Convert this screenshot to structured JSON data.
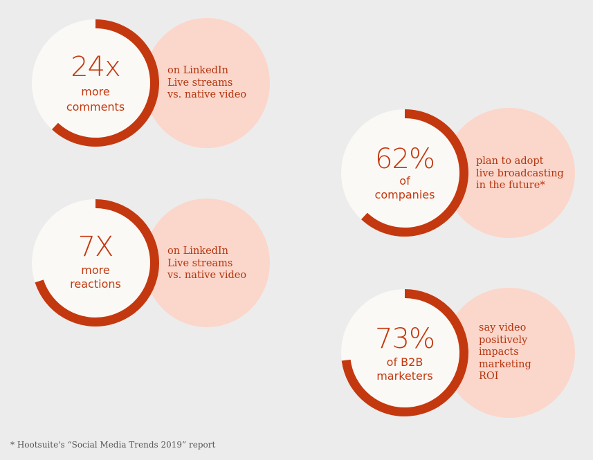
{
  "chart_data": {
    "type": "donut",
    "stats": [
      {
        "value_label": "24x",
        "subtitle_lines": [
          "more",
          "comments"
        ],
        "description_lines": [
          "on LinkedIn",
          "Live streams",
          "vs. native video"
        ],
        "fraction": 0.62
      },
      {
        "value_label": "7X",
        "subtitle_lines": [
          "more",
          "reactions"
        ],
        "description_lines": [
          "on LinkedIn",
          "Live streams",
          "vs. native video"
        ],
        "fraction": 0.7
      },
      {
        "value_label": "62%",
        "subtitle_lines": [
          "of",
          "companies"
        ],
        "description_lines": [
          "plan to adopt",
          "live broadcasting",
          "in the future*"
        ],
        "fraction": 0.62
      },
      {
        "value_label": "73%",
        "subtitle_lines": [
          "of B2B",
          "marketers"
        ],
        "description_lines": [
          "say video",
          "positively",
          "impacts",
          "marketing",
          "ROI"
        ],
        "fraction": 0.73
      }
    ]
  },
  "footnote": "* Hootsuite's “Social Media Trends 2019” report",
  "colors": {
    "background": "#ececec",
    "accent": "#c4380f",
    "ring_track": "#fbf9f5",
    "bubble": "#fbd6ca"
  }
}
